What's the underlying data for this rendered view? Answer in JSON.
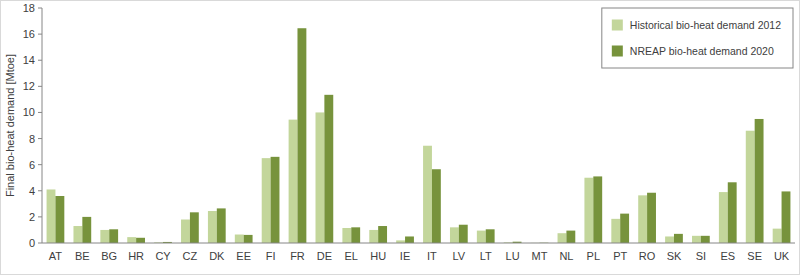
{
  "chart_data": {
    "type": "bar",
    "y_label": "Final bio-heat demand [Mtoe]",
    "categories": [
      "AT",
      "BE",
      "BG",
      "HR",
      "CY",
      "CZ",
      "DK",
      "EE",
      "FI",
      "FR",
      "DE",
      "EL",
      "HU",
      "IE",
      "IT",
      "LV",
      "LT",
      "LU",
      "MT",
      "NL",
      "PL",
      "PT",
      "RO",
      "SK",
      "SI",
      "ES",
      "SE",
      "UK"
    ],
    "series": [
      {
        "name": "Historical bio-heat demand 2012",
        "color": "#c3d69b",
        "values": [
          4.1,
          1.3,
          1.0,
          0.45,
          0.05,
          1.8,
          2.45,
          0.65,
          6.5,
          9.45,
          10.0,
          1.15,
          1.0,
          0.2,
          7.45,
          1.2,
          0.95,
          0.05,
          0.01,
          0.75,
          5.0,
          1.85,
          3.65,
          0.5,
          0.55,
          3.9,
          8.6,
          1.1
        ]
      },
      {
        "name": "NREAP bio-heat demand 2020",
        "color": "#77933c",
        "values": [
          3.6,
          2.0,
          1.05,
          0.4,
          0.08,
          2.35,
          2.65,
          0.62,
          6.6,
          16.45,
          11.35,
          1.2,
          1.3,
          0.5,
          5.65,
          1.4,
          1.05,
          0.1,
          0.02,
          0.95,
          5.1,
          2.25,
          3.85,
          0.7,
          0.55,
          4.65,
          9.5,
          3.95
        ]
      }
    ],
    "ylim": [
      0,
      18
    ],
    "yticks": [
      0,
      2,
      4,
      6,
      8,
      10,
      12,
      14,
      16,
      18
    ],
    "grid": false,
    "legend": "upper right"
  }
}
